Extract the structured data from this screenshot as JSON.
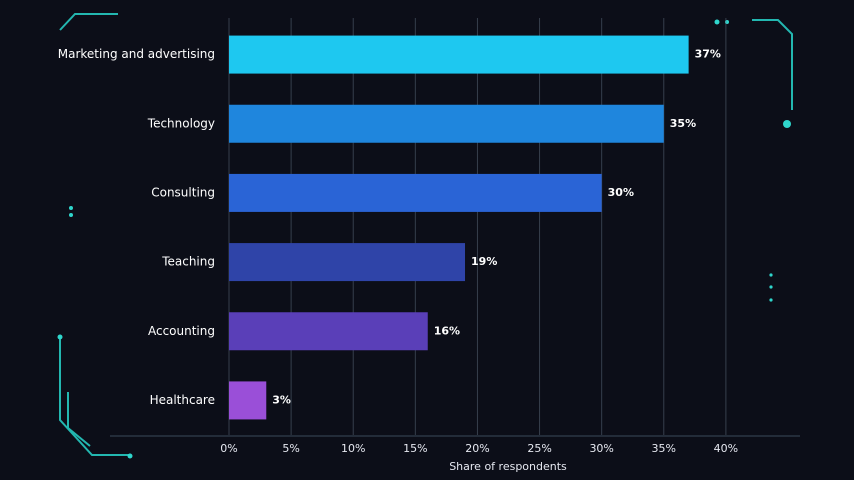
{
  "chart_data": {
    "type": "bar",
    "orientation": "horizontal",
    "categories": [
      "Marketing and advertising",
      "Technology",
      "Consulting",
      "Teaching",
      "Accounting",
      "Healthcare"
    ],
    "values": [
      37,
      35,
      30,
      19,
      16,
      3
    ],
    "value_labels": [
      "37%",
      "35%",
      "30%",
      "19%",
      "16%",
      "3%"
    ],
    "colors": [
      "#1ec8f0",
      "#1f86dd",
      "#2a64d6",
      "#2f44a8",
      "#5a3fb8",
      "#9a4fd8"
    ],
    "xlabel": "Share of respondents",
    "xlim": [
      0,
      45
    ],
    "xticks": [
      {
        "value": 0,
        "label": "0%"
      },
      {
        "value": 5,
        "label": "5%"
      },
      {
        "value": 10,
        "label": "10%"
      },
      {
        "value": 15,
        "label": "15%"
      },
      {
        "value": 20,
        "label": "20%"
      },
      {
        "value": 25,
        "label": "25%"
      },
      {
        "value": 30,
        "label": "30%"
      },
      {
        "value": 35,
        "label": "35%"
      },
      {
        "value": 40,
        "label": "40%"
      }
    ],
    "grid": true
  }
}
